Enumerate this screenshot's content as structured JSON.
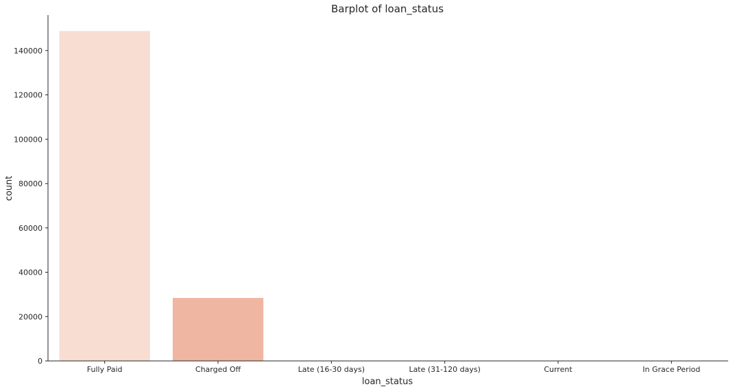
{
  "chart_data": {
    "type": "bar",
    "title": "Barplot of loan_status",
    "xlabel": "loan_status",
    "ylabel": "count",
    "categories": [
      "Fully Paid",
      "Charged Off",
      "Late (16-30 days)",
      "Late (31-120 days)",
      "Current",
      "In Grace Period"
    ],
    "values": [
      148800,
      28400,
      40,
      130,
      30,
      60
    ],
    "colors": [
      "#f7ddd2",
      "#efb6a1",
      "#e98a73",
      "#df5f51",
      "#c93a3f",
      "#a01f38"
    ],
    "ylim": [
      0,
      156000
    ],
    "yticks": [
      0,
      20000,
      40000,
      60000,
      80000,
      100000,
      120000,
      140000
    ],
    "grid": false,
    "legend": "none"
  }
}
